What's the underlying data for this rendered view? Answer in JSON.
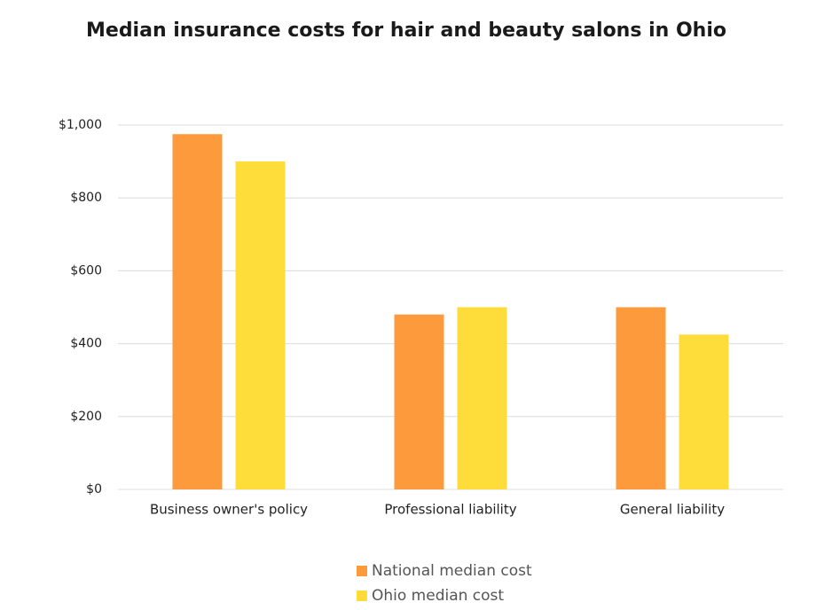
{
  "chart_data": {
    "type": "bar",
    "title": "Median insurance costs for hair and beauty salons in Ohio",
    "categories": [
      "Business owner's policy",
      "Professional liability",
      "General liability"
    ],
    "series": [
      {
        "name": "National median cost",
        "color": "#fd9a3b",
        "values": [
          975,
          480,
          500
        ]
      },
      {
        "name": "Ohio median cost",
        "color": "#fedd3a",
        "values": [
          900,
          500,
          425
        ]
      }
    ],
    "ylim": [
      0,
      1000
    ],
    "yticks": [
      {
        "value": 0,
        "label": "$0"
      },
      {
        "value": 200,
        "label": "$200"
      },
      {
        "value": 400,
        "label": "$400"
      },
      {
        "value": 600,
        "label": "$600"
      },
      {
        "value": 800,
        "label": "$800"
      },
      {
        "value": 1000,
        "label": "$1,000"
      }
    ],
    "grid": true,
    "legend": "bottom"
  }
}
